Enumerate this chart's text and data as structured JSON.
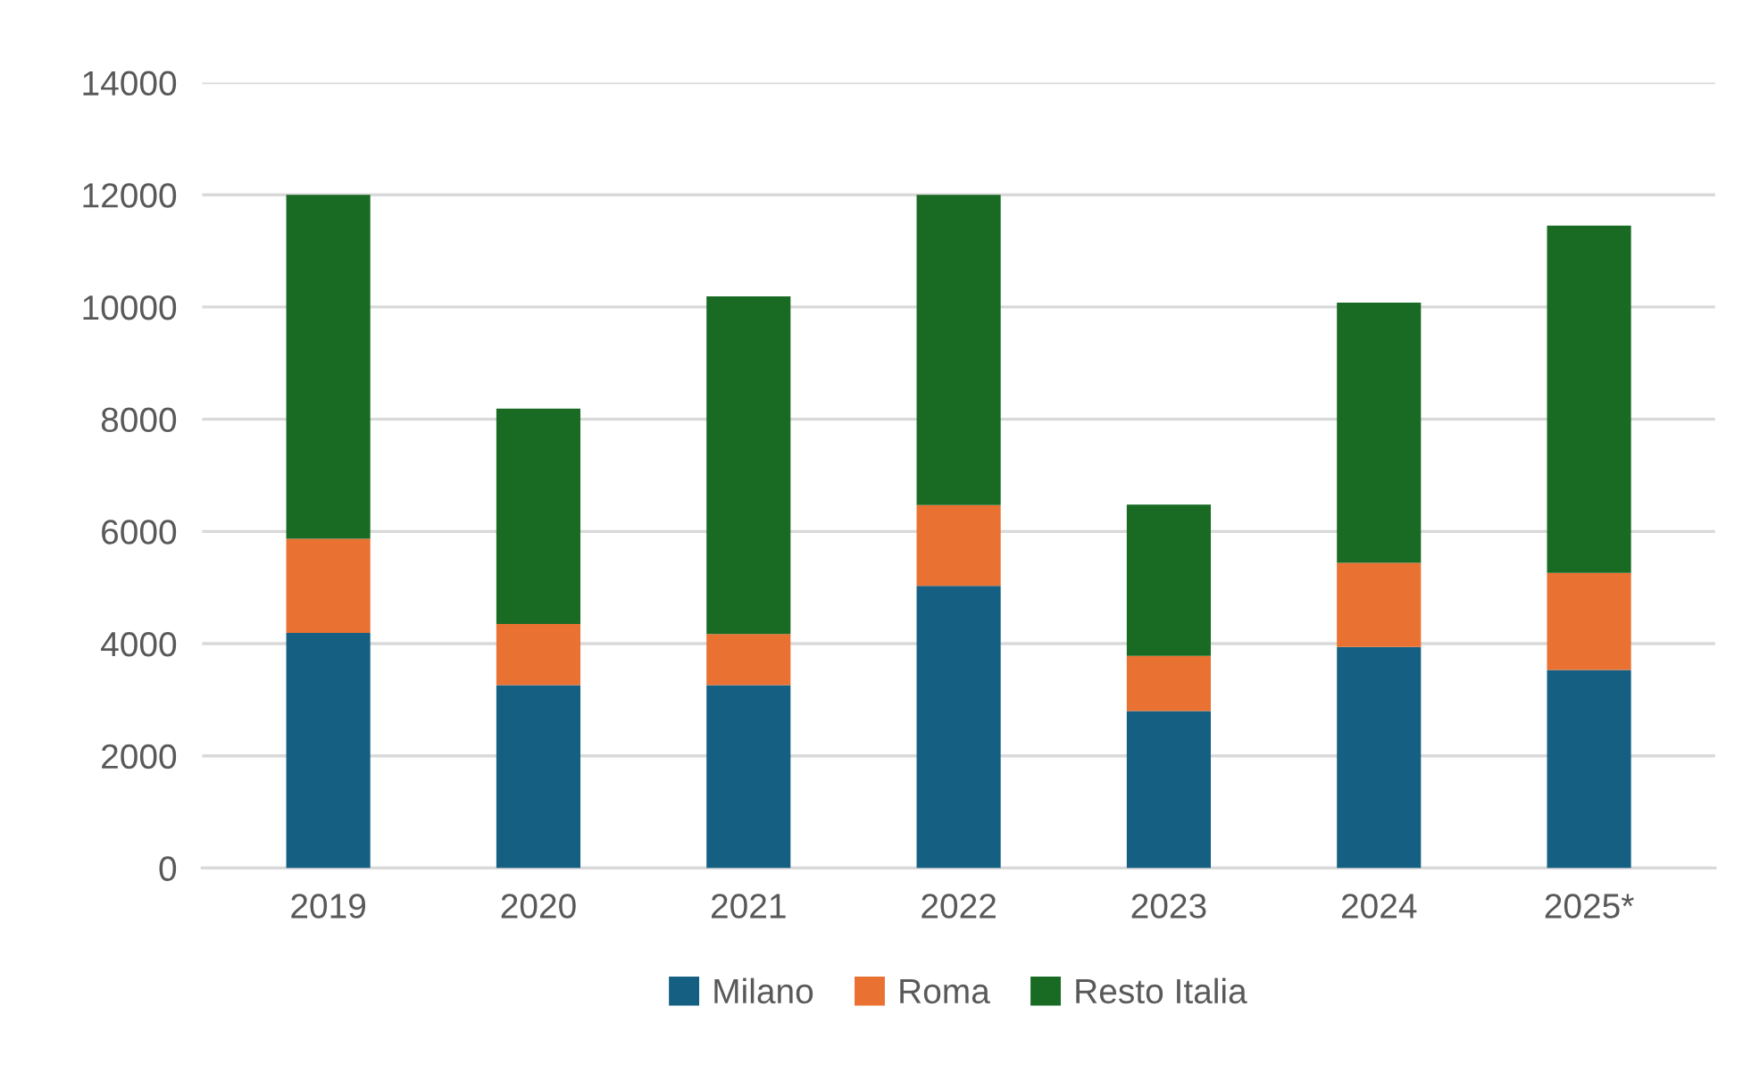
{
  "chart_data": {
    "type": "bar",
    "stacked": true,
    "categories": [
      "2019",
      "2020",
      "2021",
      "2022",
      "2023",
      "2024",
      "2025*"
    ],
    "series": [
      {
        "name": "Milano",
        "color": "#156082",
        "values": [
          4190,
          3260,
          3260,
          5030,
          2800,
          3940,
          3530
        ]
      },
      {
        "name": "Roma",
        "color": "#e97132",
        "values": [
          1680,
          1090,
          910,
          1440,
          980,
          1500,
          1730
        ]
      },
      {
        "name": "Resto Italia",
        "color": "#196b24",
        "values": [
          6130,
          3840,
          6020,
          5530,
          2700,
          4640,
          6190
        ]
      }
    ],
    "ylim": [
      0,
      14000
    ],
    "yticks": [
      0,
      2000,
      4000,
      6000,
      8000,
      10000,
      12000,
      14000
    ],
    "grid": "y",
    "legend": "bottom"
  }
}
